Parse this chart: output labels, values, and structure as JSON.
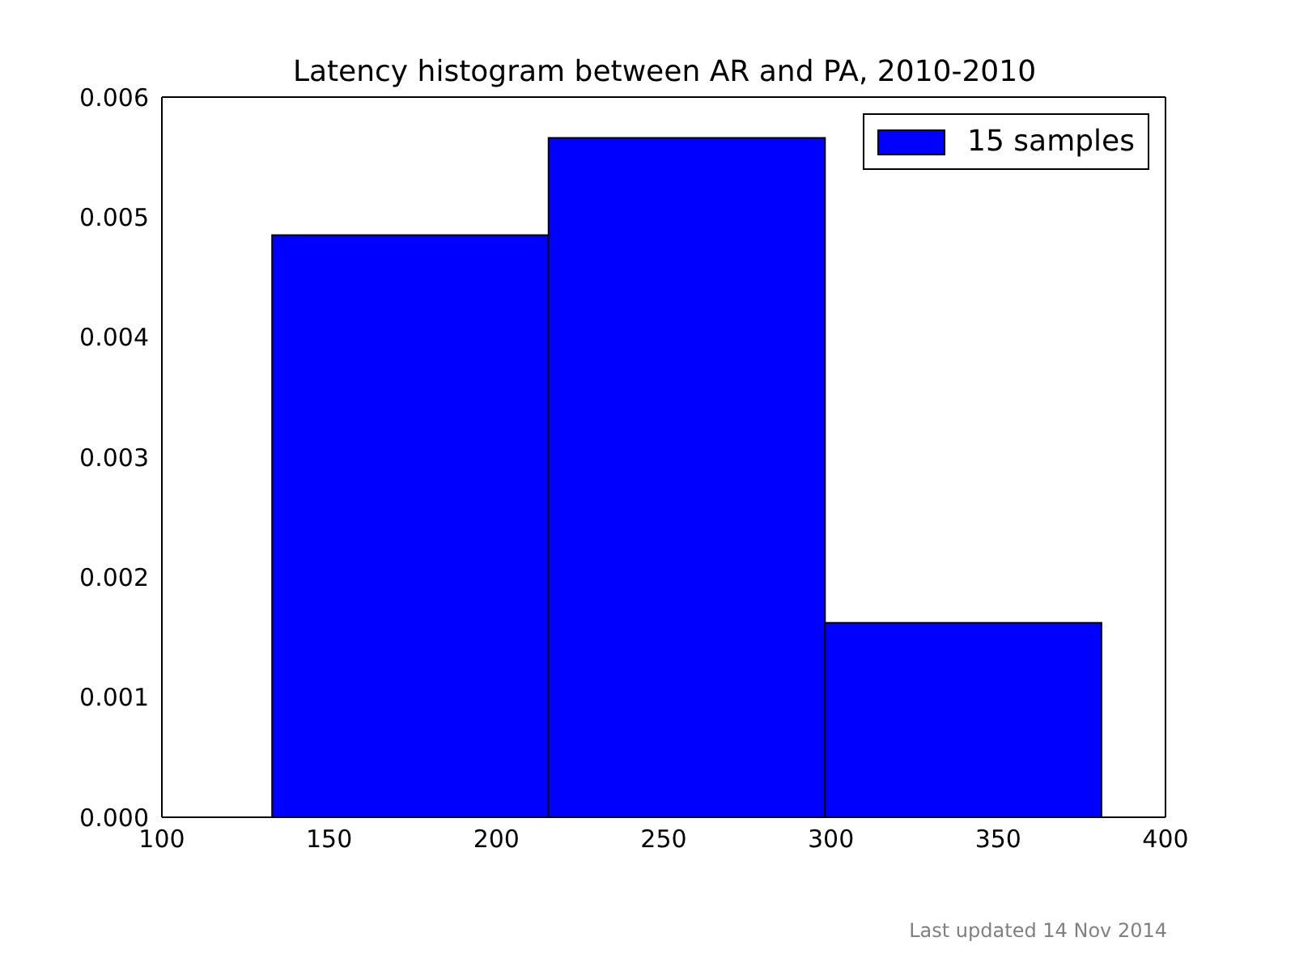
{
  "chart_data": {
    "type": "histogram",
    "title": "Latency histogram between AR and PA, 2010-2010",
    "bins": [
      132.9,
      215.4,
      297.9,
      380.4
    ],
    "series": [
      {
        "name": "15 samples",
        "color": "#0000ff",
        "values": [
          0.00485,
          0.00566,
          0.00162
        ]
      }
    ],
    "xlim": [
      100,
      400
    ],
    "xticks": [
      100,
      150,
      200,
      250,
      300,
      350,
      400
    ],
    "ylim": [
      0,
      0.006
    ],
    "yticks": [
      {
        "value": 0,
        "label": "0.000"
      },
      {
        "value": 0.001,
        "label": "0.001"
      },
      {
        "value": 0.002,
        "label": "0.002"
      },
      {
        "value": 0.003,
        "label": "0.003"
      },
      {
        "value": 0.004,
        "label": "0.004"
      },
      {
        "value": 0.005,
        "label": "0.005"
      },
      {
        "value": 0.006,
        "label": "0.006"
      }
    ],
    "legend": "top right",
    "grid": false,
    "annotations": [
      "Last updated 14 Nov 2014"
    ]
  }
}
